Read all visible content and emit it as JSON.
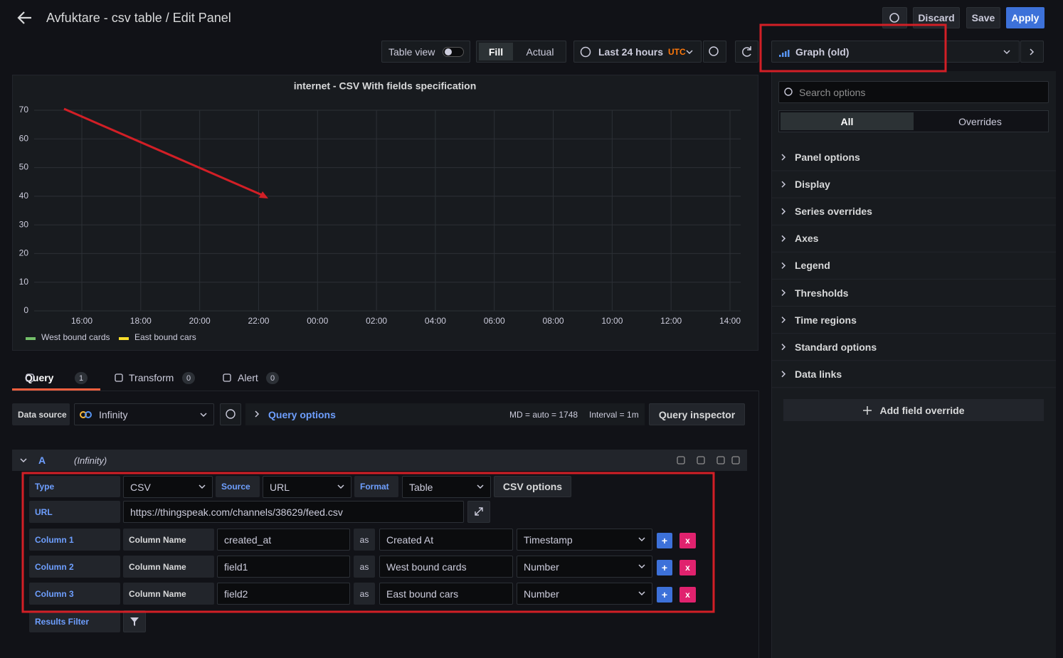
{
  "header": {
    "title": "Avfuktare - csv table / Edit Panel",
    "discard": "Discard",
    "save": "Save",
    "apply": "Apply"
  },
  "toolbar": {
    "table_view": "Table view",
    "fill": "Fill",
    "actual": "Actual",
    "time_range": "Last 24 hours",
    "timezone": "UTC",
    "visualization": "Graph (old)"
  },
  "options_pane": {
    "search_placeholder": "Search options",
    "tabs": [
      "All",
      "Overrides"
    ],
    "sections": [
      "Panel options",
      "Display",
      "Series overrides",
      "Axes",
      "Legend",
      "Thresholds",
      "Time regions",
      "Standard options",
      "Data links"
    ],
    "add_override": "Add field override"
  },
  "panel": {
    "title": "internet - CSV With fields specification",
    "ylim": [
      0,
      70
    ],
    "yticks": [
      0,
      10,
      20,
      30,
      40,
      50,
      60,
      70
    ],
    "xticks": [
      "16:00",
      "18:00",
      "20:00",
      "22:00",
      "00:00",
      "02:00",
      "04:00",
      "06:00",
      "08:00",
      "10:00",
      "12:00",
      "14:00"
    ],
    "legend": [
      {
        "name": "West bound cards",
        "color": "#73bf69"
      },
      {
        "name": "East bound cars",
        "color": "#fade2a"
      }
    ]
  },
  "query_tabs": [
    {
      "label": "Query",
      "count": 1
    },
    {
      "label": "Transform",
      "count": 0
    },
    {
      "label": "Alert",
      "count": 0
    }
  ],
  "datasource": {
    "label": "Data source",
    "value": "Infinity",
    "query_options": "Query options",
    "md": "MD = auto = 1748",
    "interval": "Interval = 1m",
    "inspector": "Query inspector"
  },
  "query": {
    "ref": "A",
    "datasource": "(Infinity)",
    "type_label": "Type",
    "type": "CSV",
    "source_label": "Source",
    "source": "URL",
    "format_label": "Format",
    "format": "Table",
    "csv_options": "CSV options",
    "url_label": "URL",
    "url": "https://thingspeak.com/channels/38629/feed.csv",
    "add": "+",
    "remove": "x",
    "columns": [
      {
        "label": "Column 1",
        "name_label": "Column Name",
        "selector": "created_at",
        "as": "as",
        "alias": "Created At",
        "type": "Timestamp"
      },
      {
        "label": "Column 2",
        "name_label": "Column Name",
        "selector": "field1",
        "as": "as",
        "alias": "West bound cards",
        "type": "Number"
      },
      {
        "label": "Column 3",
        "name_label": "Column Name",
        "selector": "field2",
        "as": "as",
        "alias": "East bound cars",
        "type": "Number"
      }
    ],
    "results_filter": "Results Filter"
  }
}
